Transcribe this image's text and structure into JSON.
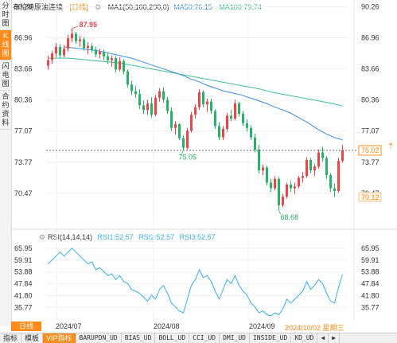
{
  "left_tabs": [
    "分时图",
    "K线图",
    "闪电图",
    "合约资料"
  ],
  "left_tab_active": 1,
  "header": {
    "name": "布伦特原油连续",
    "period_badge": "[日线]",
    "ma1": "MA1(50,100,200,0)",
    "ma50": "MA50:76.15",
    "ma100": "MA100:79.74"
  },
  "colors": {
    "up": "#e8474a",
    "down": "#2bb06a",
    "ma50": "#3a8ee6",
    "ma100": "#3fbf8e",
    "accent": "#ff8c1a",
    "rsi": "#3ab0e8",
    "grid": "#eef2f6",
    "label": "#333333"
  },
  "price_axis": {
    "ticks_right": [
      "90.26",
      "86.96",
      "83.66",
      "80.36",
      "77.07",
      "73.77",
      "70.47"
    ],
    "ticks_left": [
      "90.26",
      "86.96",
      "83.66",
      "80.36",
      "77.07",
      "73.77",
      "70.47"
    ],
    "current_price": "75.02",
    "low_box": "70.12"
  },
  "annotations": {
    "high": "87.95",
    "mid_low": "75.05",
    "low": "68.68"
  },
  "rsi": {
    "title": "RSI(14,14,14)",
    "rsi1": "RSI1:52.57",
    "rsi2": "RSI2:52.57",
    "rsi3": "RSI3:52.57",
    "ticks_right": [
      "65.95",
      "59.91",
      "53.88",
      "47.84",
      "41.80",
      "35.77"
    ],
    "ticks_left": [
      "65.95",
      "59.91",
      "53.88",
      "47.84",
      "41.80",
      "35.77"
    ]
  },
  "x_labels": [
    "2024/07",
    "2024/08",
    "2024/09"
  ],
  "cursor_date": "2024/10/02 星期三",
  "period_tab": "日线",
  "bottom_tabs": [
    "指标",
    "模板",
    "VIP指标",
    "BARUPDN_UD",
    "BIAS_UD",
    "BOLL_UD",
    "CCI_UD",
    "DMI_UD",
    "INSIDE_UD",
    "KD_UD"
  ],
  "bottom_active": 2,
  "chart_data": {
    "type": "candlestick",
    "y_range": [
      67.5,
      90.3
    ],
    "candles": [
      [
        84.0,
        85.1,
        83.6,
        84.6
      ],
      [
        84.6,
        85.6,
        84.2,
        85.3
      ],
      [
        85.3,
        86.4,
        84.9,
        86.0
      ],
      [
        86.0,
        86.3,
        84.8,
        85.1
      ],
      [
        85.1,
        86.2,
        84.9,
        85.8
      ],
      [
        85.8,
        87.3,
        85.5,
        86.9
      ],
      [
        86.9,
        87.95,
        86.5,
        87.4
      ],
      [
        87.4,
        87.6,
        86.3,
        86.6
      ],
      [
        86.6,
        87.2,
        86.0,
        86.8
      ],
      [
        86.8,
        87.0,
        85.6,
        85.9
      ],
      [
        85.9,
        86.5,
        85.2,
        86.1
      ],
      [
        86.1,
        86.4,
        85.4,
        85.7
      ],
      [
        85.7,
        86.0,
        84.9,
        85.2
      ],
      [
        85.2,
        85.8,
        84.8,
        85.5
      ],
      [
        85.5,
        85.7,
        84.6,
        85.0
      ],
      [
        85.0,
        85.3,
        84.2,
        84.6
      ],
      [
        84.6,
        85.1,
        83.9,
        84.8
      ],
      [
        84.8,
        85.0,
        83.3,
        83.6
      ],
      [
        83.6,
        84.9,
        83.4,
        84.5
      ],
      [
        84.5,
        84.7,
        83.1,
        83.4
      ],
      [
        83.4,
        83.6,
        81.7,
        82.0
      ],
      [
        82.0,
        82.4,
        80.9,
        81.3
      ],
      [
        81.3,
        81.8,
        80.6,
        81.0
      ],
      [
        81.0,
        81.5,
        79.4,
        79.8
      ],
      [
        79.8,
        80.3,
        78.9,
        79.3
      ],
      [
        79.3,
        80.4,
        78.8,
        80.0
      ],
      [
        80.0,
        80.7,
        78.5,
        78.8
      ],
      [
        78.8,
        80.9,
        78.6,
        80.6
      ],
      [
        80.6,
        81.6,
        80.2,
        81.3
      ],
      [
        81.3,
        81.7,
        80.1,
        80.4
      ],
      [
        80.4,
        80.7,
        78.9,
        79.2
      ],
      [
        79.2,
        79.6,
        77.1,
        77.4
      ],
      [
        77.4,
        78.1,
        76.7,
        77.8
      ],
      [
        77.8,
        77.9,
        76.1,
        76.3
      ],
      [
        76.3,
        76.6,
        75.05,
        75.3
      ],
      [
        75.3,
        77.4,
        75.1,
        77.1
      ],
      [
        77.1,
        79.1,
        76.9,
        78.8
      ],
      [
        78.8,
        79.9,
        78.4,
        79.6
      ],
      [
        79.6,
        81.5,
        79.3,
        81.2
      ],
      [
        81.2,
        81.4,
        79.6,
        79.9
      ],
      [
        79.9,
        80.5,
        79.1,
        80.2
      ],
      [
        80.2,
        80.5,
        78.9,
        79.2
      ],
      [
        79.2,
        79.4,
        77.3,
        77.6
      ],
      [
        77.6,
        78.0,
        76.1,
        76.4
      ],
      [
        76.4,
        77.6,
        76.1,
        77.3
      ],
      [
        77.3,
        79.0,
        77.0,
        78.7
      ],
      [
        78.7,
        79.3,
        78.1,
        78.4
      ],
      [
        78.4,
        80.4,
        78.2,
        80.0
      ],
      [
        80.0,
        80.2,
        78.6,
        78.9
      ],
      [
        78.9,
        79.2,
        77.6,
        77.9
      ],
      [
        77.9,
        78.3,
        77.0,
        77.4
      ],
      [
        77.4,
        77.7,
        76.1,
        76.4
      ],
      [
        76.4,
        76.8,
        74.8,
        75.1
      ],
      [
        75.1,
        75.6,
        72.6,
        72.9
      ],
      [
        72.9,
        73.5,
        72.4,
        73.2
      ],
      [
        73.2,
        73.4,
        71.3,
        71.6
      ],
      [
        71.6,
        72.0,
        70.6,
        71.0
      ],
      [
        71.0,
        72.3,
        70.8,
        72.0
      ],
      [
        72.0,
        72.2,
        68.68,
        69.2
      ],
      [
        69.2,
        70.4,
        69.0,
        70.1
      ],
      [
        70.1,
        71.6,
        69.9,
        71.4
      ],
      [
        71.4,
        71.8,
        70.6,
        71.0
      ],
      [
        71.0,
        71.6,
        70.4,
        71.2
      ],
      [
        71.2,
        72.3,
        71.0,
        72.1
      ],
      [
        72.1,
        72.7,
        71.6,
        72.3
      ],
      [
        72.3,
        74.3,
        72.1,
        74.0
      ],
      [
        74.0,
        74.2,
        72.6,
        72.9
      ],
      [
        72.9,
        73.6,
        72.3,
        73.3
      ],
      [
        73.3,
        75.1,
        73.1,
        74.8
      ],
      [
        74.8,
        75.4,
        73.8,
        74.2
      ],
      [
        74.2,
        74.4,
        72.0,
        72.4
      ],
      [
        72.4,
        72.6,
        70.6,
        71.0
      ],
      [
        71.0,
        71.5,
        70.1,
        70.7
      ],
      [
        70.7,
        74.2,
        70.5,
        73.9
      ],
      [
        73.9,
        75.6,
        73.7,
        75.02
      ]
    ],
    "ma50": [
      86.0,
      85.9,
      85.8,
      85.7,
      85.6,
      85.4,
      85.2,
      85.0,
      84.8,
      84.5,
      84.2,
      83.9,
      83.6,
      83.3,
      83.0,
      82.6,
      82.3,
      81.9,
      81.6,
      81.3,
      81.1,
      80.9,
      80.6,
      80.3,
      80.0,
      79.6,
      79.3,
      78.9,
      78.4,
      77.9,
      77.3,
      76.8,
      76.4,
      76.15
    ],
    "ma100": [
      84.8,
      84.8,
      84.8,
      84.7,
      84.6,
      84.5,
      84.4,
      84.3,
      84.1,
      83.9,
      83.7,
      83.5,
      83.3,
      83.1,
      82.9,
      82.7,
      82.5,
      82.3,
      82.1,
      81.9,
      81.7,
      81.5,
      81.2,
      81.0,
      80.8,
      80.6,
      80.4,
      80.2,
      80.0,
      79.74
    ],
    "rsi_range": [
      31.0,
      68.0
    ],
    "rsi_values": [
      58,
      60,
      62,
      64,
      62,
      64,
      66,
      64,
      62,
      60,
      58,
      59,
      55,
      56,
      54,
      52,
      53,
      50,
      52,
      49,
      48,
      45,
      44,
      43,
      41,
      39,
      42,
      40,
      45,
      47,
      43,
      38,
      36,
      34,
      33,
      40,
      47,
      50,
      55,
      51,
      52,
      49,
      44,
      40,
      45,
      50,
      48,
      52,
      47,
      44,
      42,
      38,
      36,
      33,
      34,
      32,
      31.5,
      33,
      32,
      35,
      40,
      38,
      40,
      42,
      44,
      49,
      45,
      47,
      50,
      48,
      43,
      39,
      38,
      46,
      52.57
    ]
  }
}
